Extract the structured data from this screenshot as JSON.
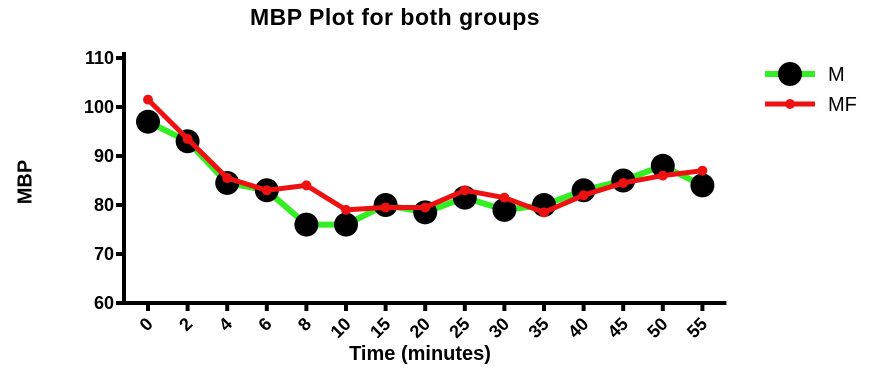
{
  "chart_data": {
    "type": "line",
    "title": "MBP Plot for both groups",
    "xlabel": "Time (minutes)",
    "ylabel": "MBP",
    "categories": [
      "0",
      "2",
      "4",
      "6",
      "8",
      "10",
      "15",
      "20",
      "25",
      "30",
      "35",
      "40",
      "45",
      "50",
      "55"
    ],
    "yticks": [
      "60",
      "70",
      "80",
      "90",
      "100",
      "110"
    ],
    "ylim": [
      60,
      110
    ],
    "grid": false,
    "legend_position": "top-right",
    "series": [
      {
        "name": "M",
        "color": "#33ee22",
        "marker": "circle-large-black",
        "values": [
          97,
          93,
          84.5,
          83,
          76,
          76,
          80,
          78.5,
          81.5,
          79,
          80,
          83,
          85,
          88,
          84
        ]
      },
      {
        "name": "MF",
        "color": "#ee1111",
        "marker": "circle-small-red",
        "values": [
          101.5,
          93.5,
          85.5,
          83,
          84,
          79,
          79.5,
          79.5,
          83,
          81.5,
          78.5,
          82,
          84.5,
          86,
          87
        ]
      }
    ]
  }
}
